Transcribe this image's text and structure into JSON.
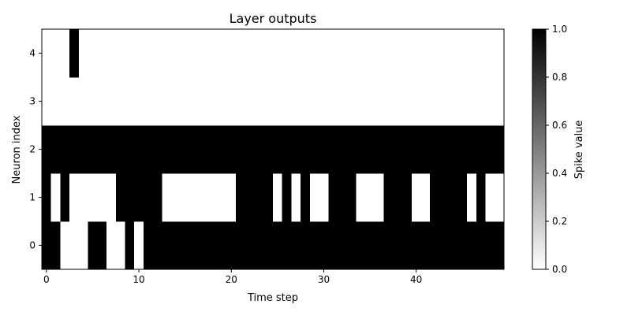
{
  "chart_data": {
    "type": "heatmap",
    "title": "Layer outputs",
    "xlabel": "Time step",
    "ylabel": "Neuron index",
    "x_ticks": [
      0,
      10,
      20,
      30,
      40
    ],
    "y_ticks": [
      0,
      1,
      2,
      3,
      4
    ],
    "xlim": [
      -0.5,
      49.5
    ],
    "ylim": [
      -0.5,
      4.5
    ],
    "n_steps": 50,
    "n_neurons": 5,
    "colormap": "greys",
    "colors": {
      "low": "#ffffff",
      "high": "#000000"
    },
    "colorbar": {
      "label": "Spike value",
      "range": [
        0.0,
        1.0
      ],
      "ticks": [
        "0.0",
        "0.2",
        "0.4",
        "0.6",
        "0.8",
        "1.0"
      ]
    },
    "grid": false,
    "rows": [
      [
        1,
        1,
        0,
        0,
        0,
        1,
        1,
        0,
        0,
        1,
        0,
        1,
        1,
        1,
        1,
        1,
        1,
        1,
        1,
        1,
        1,
        1,
        1,
        1,
        1,
        1,
        1,
        1,
        1,
        1,
        1,
        1,
        1,
        1,
        1,
        1,
        1,
        1,
        1,
        1,
        1,
        1,
        1,
        1,
        1,
        1,
        1,
        1,
        1,
        1
      ],
      [
        1,
        0,
        1,
        0,
        0,
        0,
        0,
        0,
        1,
        1,
        1,
        1,
        1,
        0,
        0,
        0,
        0,
        0,
        0,
        0,
        0,
        1,
        1,
        1,
        1,
        0,
        1,
        0,
        1,
        0,
        0,
        1,
        1,
        1,
        0,
        0,
        0,
        1,
        1,
        1,
        0,
        0,
        1,
        1,
        1,
        1,
        0,
        1,
        0,
        0
      ],
      [
        1,
        1,
        1,
        1,
        1,
        1,
        1,
        1,
        1,
        1,
        1,
        1,
        1,
        1,
        1,
        1,
        1,
        1,
        1,
        1,
        1,
        1,
        1,
        1,
        1,
        1,
        1,
        1,
        1,
        1,
        1,
        1,
        1,
        1,
        1,
        1,
        1,
        1,
        1,
        1,
        1,
        1,
        1,
        1,
        1,
        1,
        1,
        1,
        1,
        1
      ],
      [
        0,
        0,
        0,
        0,
        0,
        0,
        0,
        0,
        0,
        0,
        0,
        0,
        0,
        0,
        0,
        0,
        0,
        0,
        0,
        0,
        0,
        0,
        0,
        0,
        0,
        0,
        0,
        0,
        0,
        0,
        0,
        0,
        0,
        0,
        0,
        0,
        0,
        0,
        0,
        0,
        0,
        0,
        0,
        0,
        0,
        0,
        0,
        0,
        0,
        0
      ],
      [
        0,
        0,
        0,
        1,
        0,
        0,
        0,
        0,
        0,
        0,
        0,
        0,
        0,
        0,
        0,
        0,
        0,
        0,
        0,
        0,
        0,
        0,
        0,
        0,
        0,
        0,
        0,
        0,
        0,
        0,
        0,
        0,
        0,
        0,
        0,
        0,
        0,
        0,
        0,
        0,
        0,
        0,
        0,
        0,
        0,
        0,
        0,
        0,
        0,
        0
      ]
    ]
  }
}
